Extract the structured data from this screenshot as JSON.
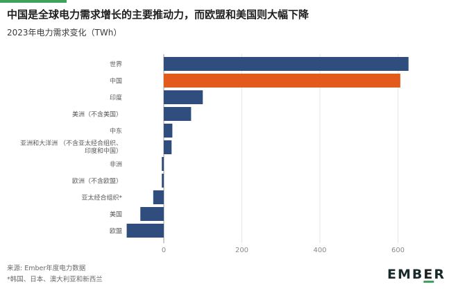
{
  "header": {
    "title": "中国是全球电力需求增长的主要推动力，而欧盟和美国则大幅下降",
    "subtitle": "2023年电力需求变化（TWh）"
  },
  "colors": {
    "accent_line": "#3da35a",
    "bar_default": "#2f4e7d",
    "bar_highlight": "#e25a1c",
    "zero_line": "#9a9a9a",
    "grid": "#e6e6e6"
  },
  "chart_data": {
    "type": "bar",
    "orientation": "horizontal",
    "title": "中国是全球电力需求增长的主要推动力，而欧盟和美国则大幅下降",
    "subtitle": "2023年电力需求变化（TWh）",
    "categories": [
      "世界",
      "中国",
      "印度",
      "美洲（不含美国）",
      "中东",
      "亚洲和大洋洲 （不含亚太经合组织、印度和中国）",
      "非洲",
      "欧洲（不含欧盟）",
      "亚太经合组织*",
      "美国",
      "欧盟"
    ],
    "values": [
      627,
      606,
      100,
      70,
      22,
      20,
      -5,
      -5,
      -27,
      -60,
      -95
    ],
    "highlight_index": 1,
    "xlim": [
      -100,
      650
    ],
    "xticks": [
      0,
      200,
      400,
      600
    ],
    "grid": true,
    "xlabel": "",
    "ylabel": ""
  },
  "footer": {
    "source": "来源: Ember年度电力数据",
    "note": "*韩国、日本、澳大利亚和新西兰",
    "logo": "EMBER"
  }
}
